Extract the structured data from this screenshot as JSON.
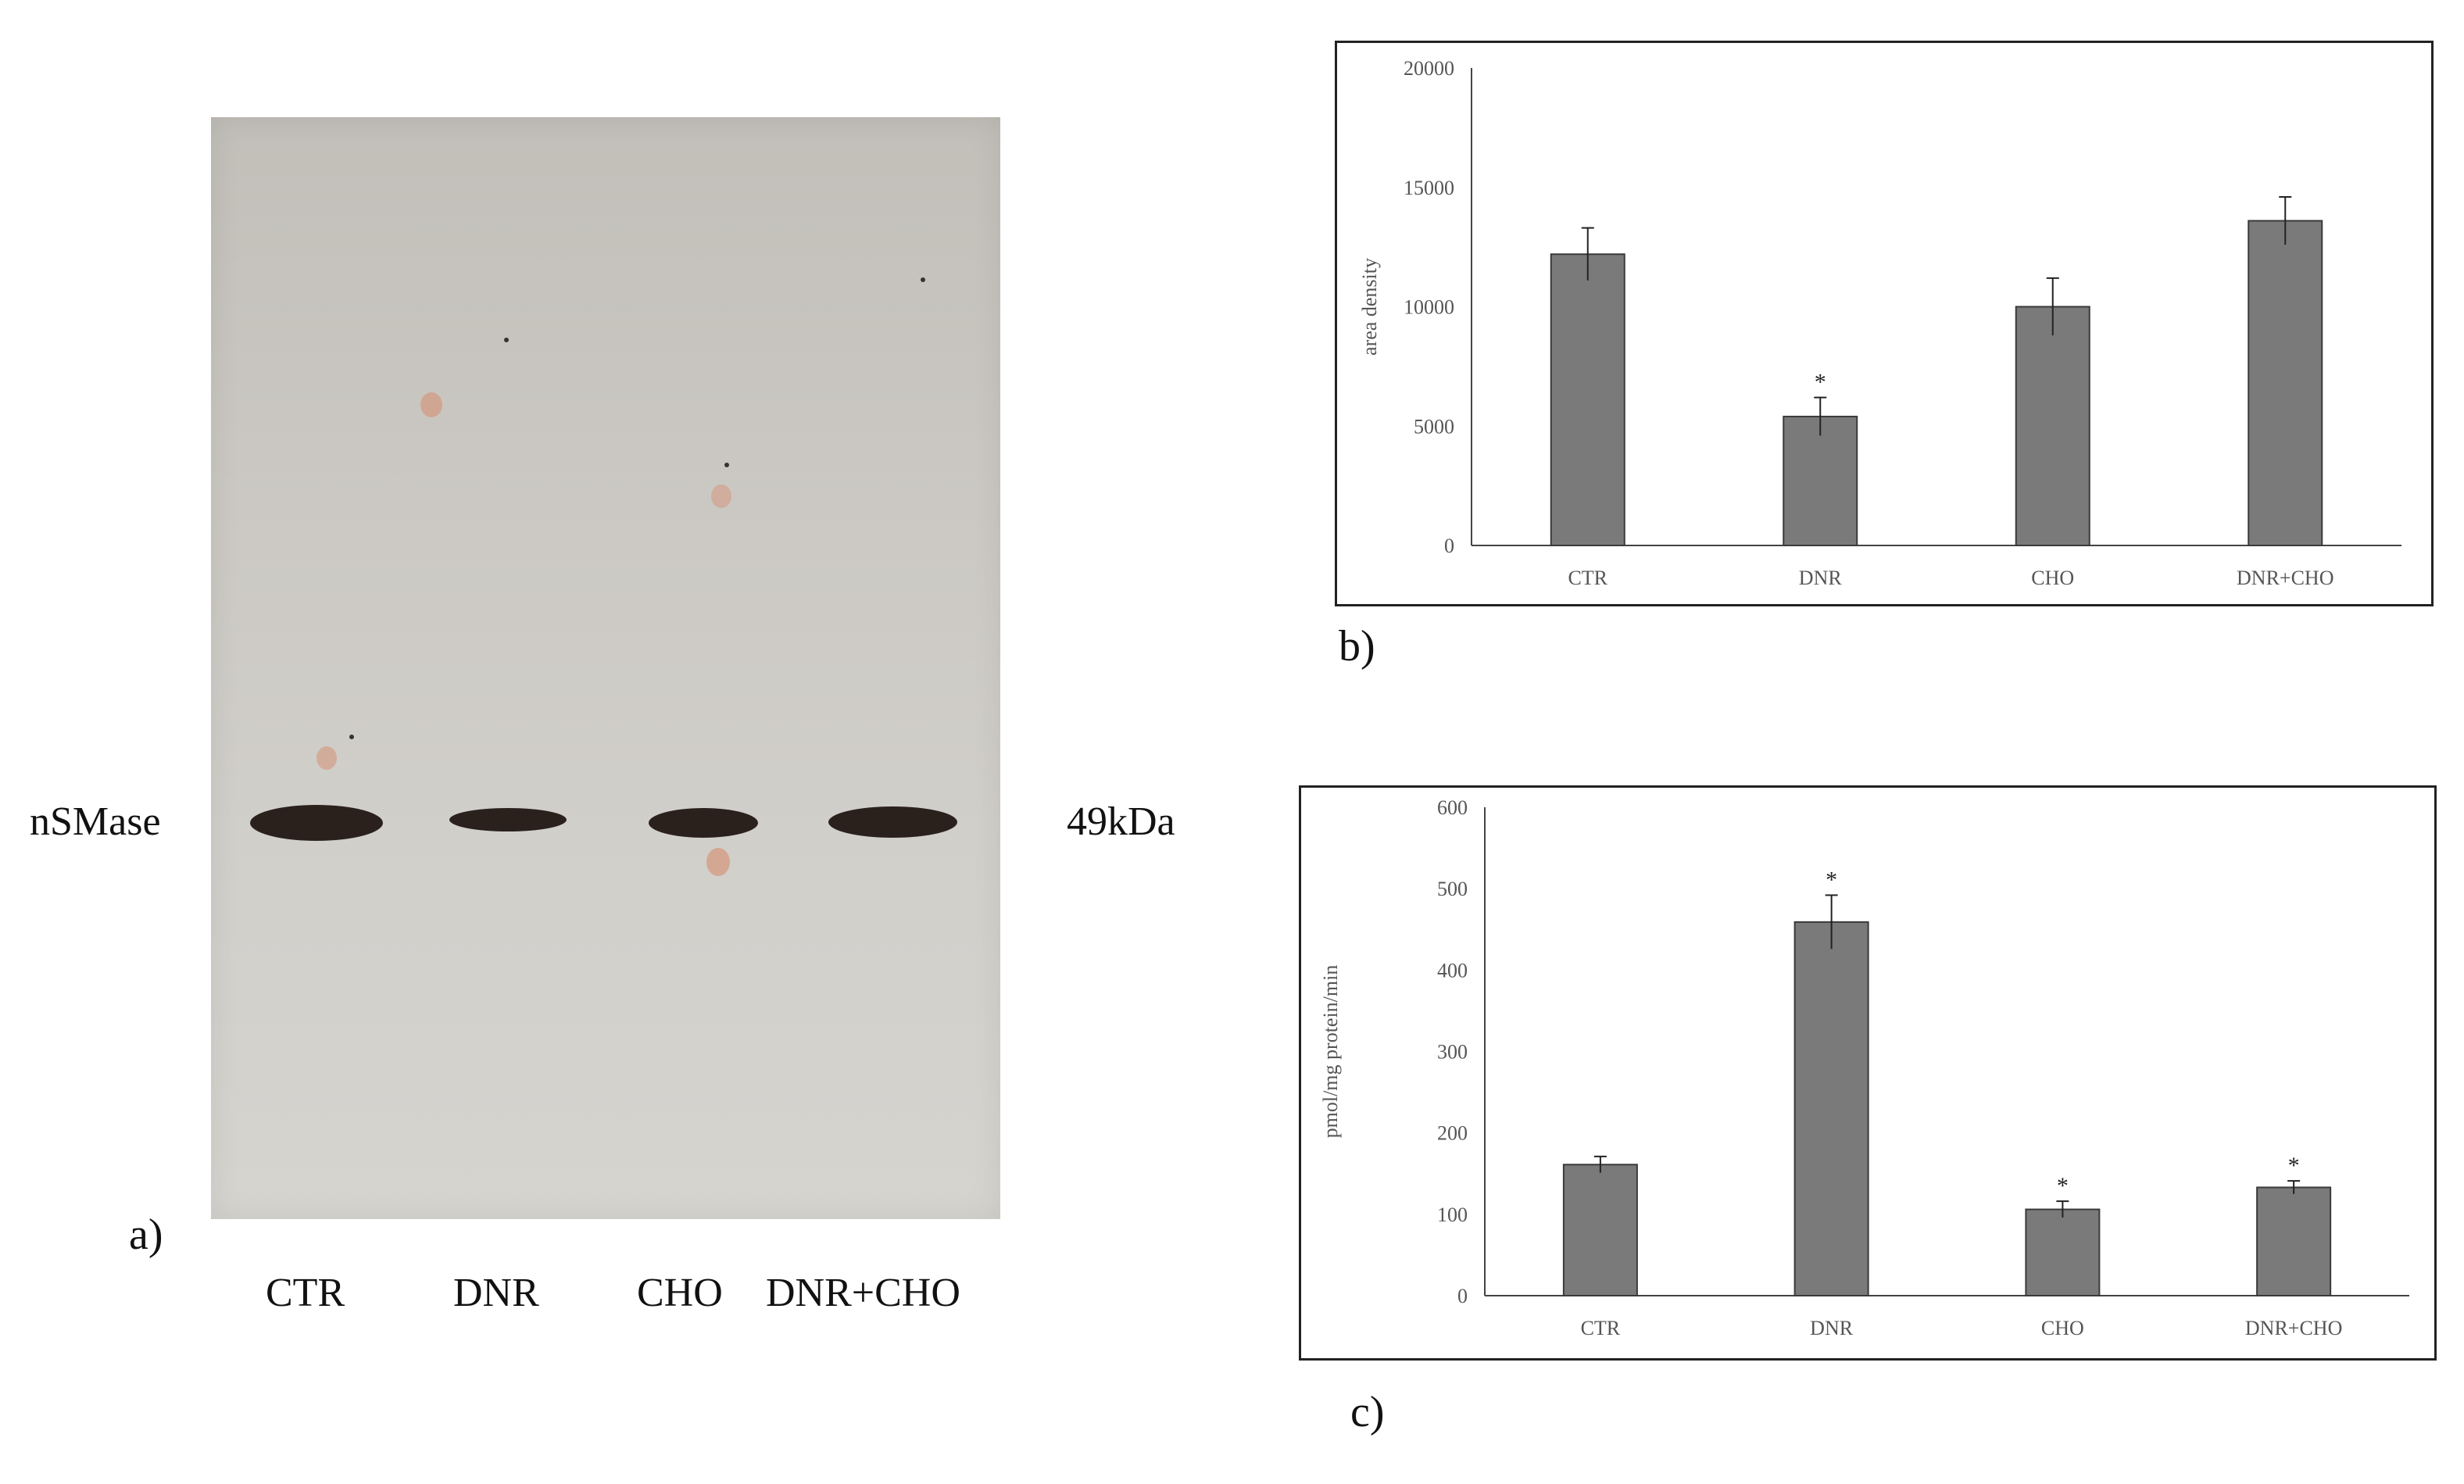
{
  "panel_a": {
    "panel_label": "a)",
    "protein_label": "nSMase",
    "mw_label": "49kDa",
    "lanes": [
      "CTR",
      "DNR",
      "CHO",
      "DNR+CHO"
    ],
    "band_intensity": [
      1.0,
      0.55,
      0.85,
      0.9
    ]
  },
  "panel_b": {
    "panel_label": "b)"
  },
  "panel_c": {
    "panel_label": "c)"
  },
  "chart_data": [
    {
      "type": "bar",
      "title": "",
      "xlabel": "",
      "ylabel": "area density",
      "categories": [
        "CTR",
        "DNR",
        "CHO",
        "DNR+CHO"
      ],
      "values": [
        12200,
        5400,
        10000,
        13600
      ],
      "errors": [
        1100,
        800,
        1200,
        1000
      ],
      "significance": [
        "",
        "*",
        "",
        ""
      ],
      "ylim": [
        0,
        20000
      ],
      "yticks": [
        0,
        5000,
        10000,
        15000,
        20000
      ],
      "bar_color": "#7a7a7a",
      "grid": false
    },
    {
      "type": "bar",
      "title": "",
      "xlabel": "",
      "ylabel": "pmol/mg protein/min",
      "categories": [
        "CTR",
        "DNR",
        "CHO",
        "DNR+CHO"
      ],
      "values": [
        161,
        459,
        106,
        133
      ],
      "errors": [
        10,
        33,
        10,
        8
      ],
      "significance": [
        "",
        "*",
        "*",
        "*"
      ],
      "ylim": [
        0,
        600
      ],
      "yticks": [
        0,
        100,
        200,
        300,
        400,
        500,
        600
      ],
      "bar_color": "#7a7a7a",
      "grid": false
    }
  ]
}
